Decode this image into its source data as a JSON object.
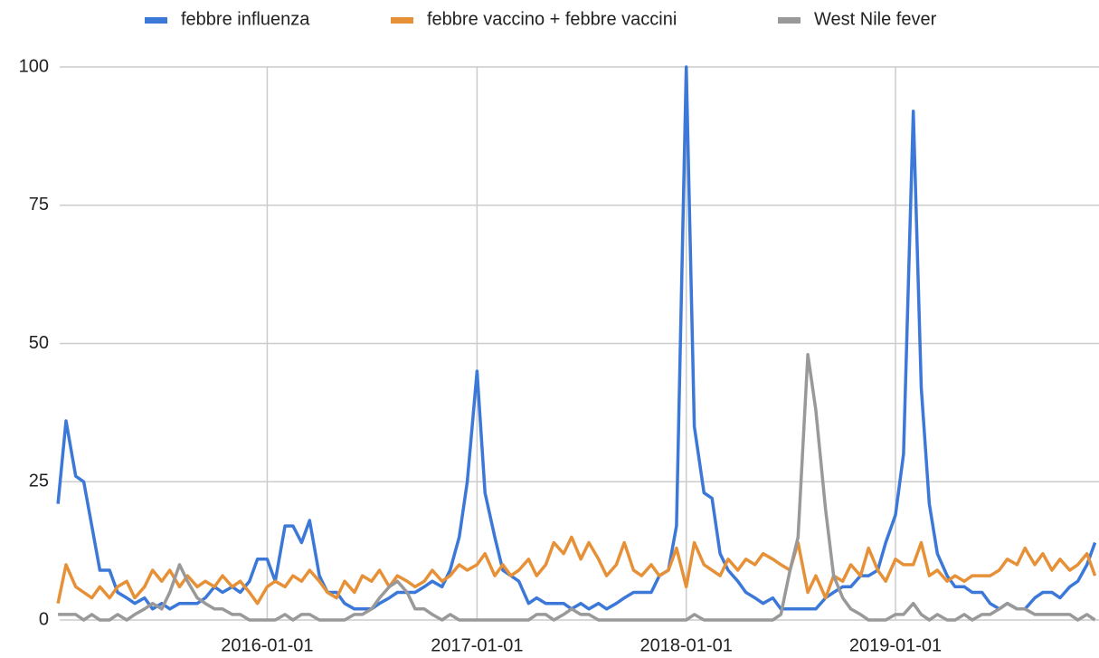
{
  "chart_data": {
    "type": "line",
    "x": [
      "2015-01-01",
      "2015-01-15",
      "2015-02-01",
      "2015-02-15",
      "2015-03-01",
      "2015-03-15",
      "2015-04-01",
      "2015-04-15",
      "2015-05-01",
      "2015-05-15",
      "2015-06-01",
      "2015-06-15",
      "2015-07-01",
      "2015-07-15",
      "2015-08-01",
      "2015-08-15",
      "2015-09-01",
      "2015-09-15",
      "2015-10-01",
      "2015-10-15",
      "2015-11-01",
      "2015-11-15",
      "2015-12-01",
      "2015-12-15",
      "2016-01-01",
      "2016-01-15",
      "2016-02-01",
      "2016-02-15",
      "2016-03-01",
      "2016-03-15",
      "2016-04-01",
      "2016-04-15",
      "2016-05-01",
      "2016-05-15",
      "2016-06-01",
      "2016-06-15",
      "2016-07-01",
      "2016-07-15",
      "2016-08-01",
      "2016-08-15",
      "2016-09-01",
      "2016-09-15",
      "2016-10-01",
      "2016-10-15",
      "2016-11-01",
      "2016-11-15",
      "2016-12-01",
      "2016-12-15",
      "2017-01-01",
      "2017-01-15",
      "2017-02-01",
      "2017-02-15",
      "2017-03-01",
      "2017-03-15",
      "2017-04-01",
      "2017-04-15",
      "2017-05-01",
      "2017-05-15",
      "2017-06-01",
      "2017-06-15",
      "2017-07-01",
      "2017-07-15",
      "2017-08-01",
      "2017-08-15",
      "2017-09-01",
      "2017-09-15",
      "2017-10-01",
      "2017-10-15",
      "2017-11-01",
      "2017-11-15",
      "2017-12-01",
      "2017-12-15",
      "2018-01-01",
      "2018-01-15",
      "2018-02-01",
      "2018-02-15",
      "2018-03-01",
      "2018-03-15",
      "2018-04-01",
      "2018-04-15",
      "2018-05-01",
      "2018-05-15",
      "2018-06-01",
      "2018-06-15",
      "2018-07-01",
      "2018-07-15",
      "2018-08-01",
      "2018-08-15",
      "2018-09-01",
      "2018-09-15",
      "2018-10-01",
      "2018-10-15",
      "2018-11-01",
      "2018-11-15",
      "2018-12-01",
      "2018-12-15",
      "2019-01-01",
      "2019-01-15",
      "2019-02-01",
      "2019-02-15",
      "2019-03-01",
      "2019-03-15",
      "2019-04-01",
      "2019-04-15",
      "2019-05-01",
      "2019-05-15",
      "2019-06-01",
      "2019-06-15",
      "2019-07-01",
      "2019-07-15",
      "2019-08-01",
      "2019-08-15",
      "2019-09-01",
      "2019-09-15",
      "2019-10-01",
      "2019-10-15",
      "2019-11-01",
      "2019-11-15",
      "2019-12-01",
      "2019-12-15"
    ],
    "series": [
      {
        "name": "febbre influenza",
        "color": "#3c78d8",
        "values": [
          21,
          36,
          26,
          25,
          17,
          9,
          9,
          5,
          4,
          3,
          4,
          2,
          3,
          2,
          3,
          3,
          3,
          4,
          6,
          5,
          6,
          5,
          7,
          11,
          11,
          7,
          17,
          17,
          14,
          18,
          8,
          5,
          5,
          3,
          2,
          2,
          2,
          3,
          4,
          5,
          5,
          5,
          6,
          7,
          6,
          9,
          15,
          25,
          45,
          23,
          15,
          9,
          8,
          7,
          3,
          4,
          3,
          3,
          3,
          2,
          3,
          2,
          3,
          2,
          3,
          4,
          5,
          5,
          5,
          8,
          9,
          17,
          100,
          35,
          23,
          22,
          12,
          9,
          7,
          5,
          4,
          3,
          4,
          2,
          2,
          2,
          2,
          2,
          4,
          5,
          6,
          6,
          8,
          8,
          9,
          14,
          19,
          30,
          92,
          42,
          21,
          12,
          8,
          6,
          6,
          5,
          5,
          3,
          2,
          3,
          2,
          2,
          4,
          5,
          5,
          4,
          6,
          7,
          10,
          14
        ]
      },
      {
        "name": "febbre vaccino + febbre vaccini",
        "color": "#e69138",
        "values": [
          3,
          10,
          6,
          5,
          4,
          6,
          4,
          6,
          7,
          4,
          6,
          9,
          7,
          9,
          6,
          8,
          6,
          7,
          6,
          8,
          6,
          7,
          5,
          3,
          6,
          7,
          6,
          8,
          7,
          9,
          7,
          5,
          4,
          7,
          5,
          8,
          7,
          9,
          6,
          8,
          7,
          6,
          7,
          9,
          7,
          8,
          10,
          9,
          10,
          12,
          8,
          10,
          8,
          9,
          11,
          8,
          10,
          14,
          12,
          15,
          11,
          14,
          11,
          8,
          10,
          14,
          9,
          8,
          10,
          8,
          9,
          13,
          6,
          14,
          10,
          9,
          8,
          11,
          9,
          11,
          10,
          12,
          11,
          10,
          9,
          14,
          5,
          8,
          4,
          8,
          7,
          10,
          8,
          13,
          9,
          7,
          11,
          10,
          10,
          14,
          8,
          9,
          7,
          8,
          7,
          8,
          8,
          8,
          9,
          11,
          10,
          13,
          10,
          12,
          9,
          11,
          9,
          10,
          12,
          8
        ]
      },
      {
        "name": "West Nile fever",
        "color": "#999999",
        "values": [
          1,
          1,
          1,
          0,
          1,
          0,
          0,
          1,
          0,
          1,
          2,
          3,
          2,
          5,
          10,
          7,
          4,
          3,
          2,
          2,
          1,
          1,
          0,
          0,
          0,
          0,
          1,
          0,
          1,
          1,
          0,
          0,
          0,
          0,
          1,
          1,
          2,
          4,
          6,
          7,
          5,
          2,
          2,
          1,
          0,
          1,
          0,
          0,
          0,
          0,
          0,
          0,
          0,
          0,
          0,
          1,
          1,
          0,
          1,
          2,
          1,
          1,
          0,
          0,
          0,
          0,
          0,
          0,
          0,
          0,
          0,
          0,
          0,
          1,
          0,
          0,
          0,
          0,
          0,
          0,
          0,
          0,
          0,
          1,
          9,
          15,
          48,
          38,
          20,
          8,
          4,
          2,
          1,
          0,
          0,
          0,
          1,
          1,
          3,
          1,
          0,
          1,
          0,
          0,
          1,
          0,
          1,
          1,
          2,
          3,
          2,
          2,
          1,
          1,
          1,
          1,
          1,
          0,
          1,
          0
        ]
      }
    ],
    "xlim": [
      "2015-01-04",
      "2019-12-22"
    ],
    "xticks": [
      "2016-01-01",
      "2017-01-01",
      "2018-01-01",
      "2019-01-01"
    ],
    "ylim": [
      0,
      100
    ],
    "yticks": [
      0,
      25,
      50,
      75,
      100
    ],
    "grid": true,
    "legend": "top"
  }
}
